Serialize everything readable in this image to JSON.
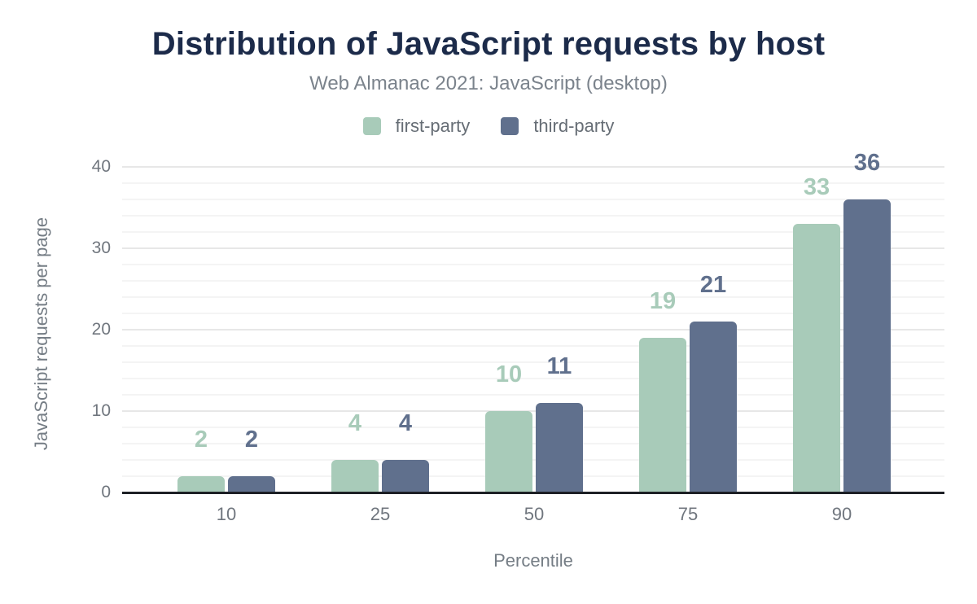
{
  "header": {
    "title": "Distribution of JavaScript requests by host",
    "subtitle": "Web Almanac 2021: JavaScript (desktop)"
  },
  "legend": {
    "items": [
      {
        "label": "first-party",
        "color": "#a8cbb9"
      },
      {
        "label": "third-party",
        "color": "#60708d"
      }
    ]
  },
  "chart_data": {
    "type": "bar",
    "title": "Distribution of JavaScript requests by host",
    "subtitle": "Web Almanac 2021: JavaScript (desktop)",
    "categories": [
      "10",
      "25",
      "50",
      "75",
      "90"
    ],
    "series": [
      {
        "name": "first-party",
        "color": "#a8cbb9",
        "values": [
          2,
          4,
          10,
          19,
          33
        ]
      },
      {
        "name": "third-party",
        "color": "#60708d",
        "values": [
          2,
          4,
          11,
          21,
          36
        ]
      }
    ],
    "xlabel": "Percentile",
    "ylabel": "JavaScript requests per page",
    "ylim": [
      0,
      40
    ],
    "yticks": [
      0,
      10,
      20,
      30,
      40
    ],
    "grid": {
      "orientation": "horizontal",
      "minor_step": 2,
      "major_step": 10
    },
    "legend_position": "top",
    "value_labels": true
  },
  "colors": {
    "title": "#1c2b4a",
    "subtitle": "#7b838c",
    "axis_text": "#757d85",
    "tick_text": "#70767e",
    "axis_line": "#1d2025",
    "grid_minor": "#f4f4f4",
    "grid_major": "#e7e7e7",
    "background": "#ffffff"
  }
}
